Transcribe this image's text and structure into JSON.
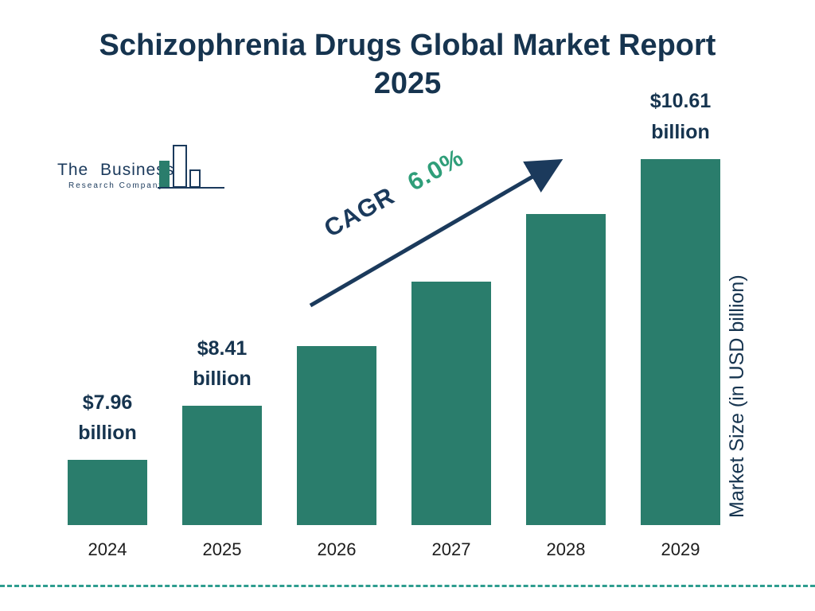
{
  "title": {
    "line1": "Schizophrenia Drugs Global Market Report",
    "line2": "2025"
  },
  "logo": {
    "line1": "The Business",
    "line2": "Research Company"
  },
  "chart_data": {
    "type": "bar",
    "title": "Schizophrenia Drugs Global Market Report 2025",
    "categories": [
      "2024",
      "2025",
      "2026",
      "2027",
      "2028",
      "2029"
    ],
    "values": [
      7.96,
      8.41,
      8.91,
      9.45,
      10.02,
      10.61
    ],
    "value_labels": [
      {
        "amount": "$7.96",
        "unit": "billion"
      },
      {
        "amount": "$8.41",
        "unit": "billion"
      },
      null,
      null,
      null,
      {
        "amount": "$10.61",
        "unit": "billion"
      }
    ],
    "cagr_label": "CAGR",
    "cagr_value": "6.0%",
    "ylabel": "Market Size (in USD billion)",
    "xlabel": "",
    "ylim": [
      7.4,
      11.0
    ],
    "grid": false,
    "legend": false,
    "y_axis_visible": false,
    "bar_color": "#2a7d6c",
    "text_color": "#16344f",
    "accent_color": "#2f9e79",
    "arrow_color": "#1b3a5c",
    "divider_color": "#2e9d8f"
  }
}
